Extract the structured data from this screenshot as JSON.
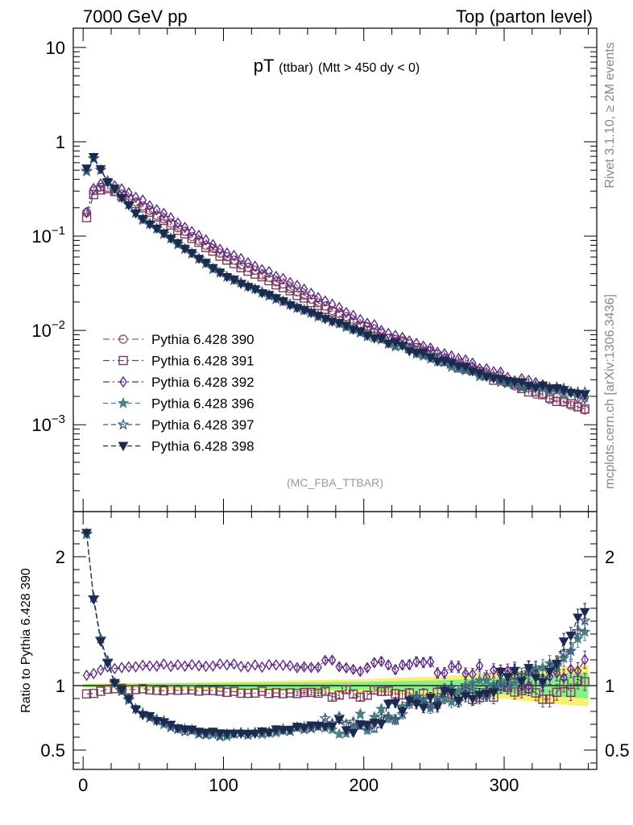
{
  "header": {
    "left": "7000 GeV pp",
    "right": "Top (parton level)"
  },
  "side_labels": {
    "rivet": "Rivet 3.1.10, ≥ 2M events",
    "mcplots": "mcplots.cern.ch [arXiv:1306.3436]"
  },
  "analysis_id": "(MC_FBA_TTBAR)",
  "colors": {
    "p390": "#8c5a82",
    "p391": "#7a3c5a",
    "p392": "#5e2a84",
    "p396": "#4a7f84",
    "p397": "#3c5a78",
    "p398": "#1c2a50",
    "band_inner": "#88f088",
    "band_outer": "#f8f070"
  },
  "chart_data": [
    {
      "type": "line",
      "title_main": "pT",
      "title_sub": "(ttbar)",
      "title_rest": "(Mtt > 450 dy < 0)",
      "xlabel": "",
      "ylabel": "",
      "xlim": [
        -7,
        366
      ],
      "ylim": [
        0.00012,
        16
      ],
      "yscale": "log",
      "y_ticks": [
        {
          "value": 10,
          "label": "10"
        },
        {
          "value": 1,
          "label": "1"
        },
        {
          "value": 0.1,
          "label_base": "10",
          "label_exp": "−1"
        },
        {
          "value": 0.01,
          "label_base": "10",
          "label_exp": "−2"
        },
        {
          "value": 0.001,
          "label_base": "10",
          "label_exp": "−3"
        }
      ],
      "legend_position": "bottom-left",
      "legend": [
        {
          "label": "Pythia 6.428 390",
          "marker": "circle-open",
          "color": "p390",
          "dash": "8,4,2,4"
        },
        {
          "label": "Pythia 6.428 391",
          "marker": "square-open",
          "color": "p391",
          "dash": "8,4,2,4"
        },
        {
          "label": "Pythia 6.428 392",
          "marker": "diamond-open",
          "color": "p392",
          "dash": "8,4,2,4"
        },
        {
          "label": "Pythia 6.428 396",
          "marker": "star",
          "color": "p396",
          "dash": "6,4"
        },
        {
          "label": "Pythia 6.428 397",
          "marker": "star-open",
          "color": "p397",
          "dash": "6,4"
        },
        {
          "label": "Pythia 6.428 398",
          "marker": "triangle-down",
          "color": "p398",
          "dash": "6,4"
        }
      ],
      "series_model": "piecewise log-linear anchors (x in GeV, y in arb. units), read from the plot",
      "series": [
        {
          "key": "p390",
          "anchors": [
            [
              2.5,
              0.18
            ],
            [
              7.5,
              0.3
            ],
            [
              12.5,
              0.33
            ],
            [
              17.5,
              0.33
            ],
            [
              40,
              0.22
            ],
            [
              100,
              0.062
            ],
            [
              150,
              0.027
            ],
            [
              200,
              0.011
            ],
            [
              250,
              0.0055
            ],
            [
              300,
              0.0029
            ],
            [
              360,
              0.0014
            ]
          ]
        },
        {
          "key": "p391",
          "anchors": [
            [
              2.5,
              0.16
            ],
            [
              7.5,
              0.28
            ],
            [
              12.5,
              0.31
            ],
            [
              17.5,
              0.32
            ],
            [
              40,
              0.21
            ],
            [
              100,
              0.058
            ],
            [
              150,
              0.025
            ],
            [
              200,
              0.0105
            ],
            [
              250,
              0.0052
            ],
            [
              300,
              0.0028
            ],
            [
              360,
              0.0014
            ]
          ]
        },
        {
          "key": "p392",
          "anchors": [
            [
              2.5,
              0.18
            ],
            [
              7.5,
              0.32
            ],
            [
              12.5,
              0.36
            ],
            [
              17.5,
              0.37
            ],
            [
              40,
              0.25
            ],
            [
              100,
              0.07
            ],
            [
              150,
              0.031
            ],
            [
              200,
              0.0125
            ],
            [
              250,
              0.0062
            ],
            [
              300,
              0.0033
            ],
            [
              360,
              0.0019
            ]
          ]
        },
        {
          "key": "p396",
          "anchors": [
            [
              2.5,
              0.49
            ],
            [
              7.5,
              0.66
            ],
            [
              12.5,
              0.5
            ],
            [
              17.5,
              0.38
            ],
            [
              40,
              0.16
            ],
            [
              100,
              0.038
            ],
            [
              150,
              0.018
            ],
            [
              200,
              0.0092
            ],
            [
              250,
              0.005
            ],
            [
              300,
              0.0028
            ],
            [
              360,
              0.002
            ]
          ]
        },
        {
          "key": "p397",
          "anchors": [
            [
              2.5,
              0.5
            ],
            [
              7.5,
              0.67
            ],
            [
              12.5,
              0.51
            ],
            [
              17.5,
              0.38
            ],
            [
              40,
              0.16
            ],
            [
              100,
              0.038
            ],
            [
              150,
              0.018
            ],
            [
              200,
              0.0094
            ],
            [
              250,
              0.0051
            ],
            [
              300,
              0.0029
            ],
            [
              360,
              0.0021
            ]
          ]
        },
        {
          "key": "p398",
          "anchors": [
            [
              2.5,
              0.51
            ],
            [
              7.5,
              0.68
            ],
            [
              12.5,
              0.52
            ],
            [
              17.5,
              0.38
            ],
            [
              40,
              0.16
            ],
            [
              100,
              0.038
            ],
            [
              150,
              0.018
            ],
            [
              200,
              0.0093
            ],
            [
              250,
              0.005
            ],
            [
              300,
              0.0029
            ],
            [
              360,
              0.0021
            ]
          ]
        }
      ]
    },
    {
      "type": "line",
      "xlabel": "",
      "ylabel": "Ratio to Pythia 6.428 390",
      "xlim": [
        -7,
        366
      ],
      "ylim": [
        0.35,
        2.35
      ],
      "x_ticks": [
        0,
        100,
        200,
        300
      ],
      "y_ticks": [
        {
          "value": 2,
          "label": "2"
        },
        {
          "value": 1,
          "label": "1"
        },
        {
          "value": 0.5,
          "label": "0.5"
        }
      ],
      "reference_series": "p390",
      "reference_value": 1,
      "band": {
        "x": [
          0,
          100,
          200,
          250,
          300,
          330,
          360
        ],
        "inner_halfwidth": [
          0.01,
          0.02,
          0.03,
          0.04,
          0.06,
          0.08,
          0.1
        ],
        "outer_halfwidth": [
          0.015,
          0.03,
          0.05,
          0.07,
          0.1,
          0.14,
          0.16
        ]
      },
      "series": [
        {
          "key": "p391",
          "anchors": [
            [
              2.5,
              0.93
            ],
            [
              10,
              0.96
            ],
            [
              20,
              0.97
            ],
            [
              100,
              0.955
            ],
            [
              150,
              0.94
            ],
            [
              200,
              0.93
            ],
            [
              230,
              0.9
            ],
            [
              260,
              0.93
            ],
            [
              300,
              0.95
            ],
            [
              330,
              0.92
            ],
            [
              360,
              1.05
            ]
          ],
          "noise": 0.03
        },
        {
          "key": "p392",
          "anchors": [
            [
              2.5,
              1.08
            ],
            [
              15,
              1.13
            ],
            [
              40,
              1.16
            ],
            [
              100,
              1.16
            ],
            [
              150,
              1.15
            ],
            [
              200,
              1.14
            ],
            [
              230,
              1.16
            ],
            [
              260,
              1.13
            ],
            [
              300,
              1.08
            ],
            [
              330,
              1.0
            ],
            [
              360,
              1.2
            ]
          ],
          "noise": 0.035
        },
        {
          "key": "p396",
          "anchors": [
            [
              2.5,
              2.18
            ],
            [
              7.5,
              1.68
            ],
            [
              12.5,
              1.35
            ],
            [
              22.5,
              1.02
            ],
            [
              40,
              0.8
            ],
            [
              60,
              0.7
            ],
            [
              80,
              0.635
            ],
            [
              100,
              0.62
            ],
            [
              130,
              0.635
            ],
            [
              160,
              0.68
            ],
            [
              190,
              0.7
            ],
            [
              210,
              0.74
            ],
            [
              225,
              0.82
            ],
            [
              250,
              0.9
            ],
            [
              280,
              0.97
            ],
            [
              300,
              1.05
            ],
            [
              330,
              1.1
            ],
            [
              360,
              1.45
            ]
          ],
          "noise": 0.045
        },
        {
          "key": "p397",
          "anchors": [
            [
              2.5,
              2.18
            ],
            [
              7.5,
              1.68
            ],
            [
              12.5,
              1.35
            ],
            [
              22.5,
              1.02
            ],
            [
              40,
              0.8
            ],
            [
              60,
              0.7
            ],
            [
              80,
              0.635
            ],
            [
              100,
              0.62
            ],
            [
              130,
              0.635
            ],
            [
              160,
              0.68
            ],
            [
              190,
              0.7
            ],
            [
              210,
              0.74
            ],
            [
              225,
              0.82
            ],
            [
              250,
              0.9
            ],
            [
              280,
              0.97
            ],
            [
              300,
              1.05
            ],
            [
              330,
              1.1
            ],
            [
              360,
              1.5
            ]
          ],
          "noise": 0.05
        },
        {
          "key": "p398",
          "anchors": [
            [
              2.5,
              2.18
            ],
            [
              7.5,
              1.68
            ],
            [
              12.5,
              1.35
            ],
            [
              22.5,
              1.02
            ],
            [
              40,
              0.8
            ],
            [
              60,
              0.7
            ],
            [
              80,
              0.635
            ],
            [
              100,
              0.62
            ],
            [
              130,
              0.635
            ],
            [
              160,
              0.68
            ],
            [
              190,
              0.7
            ],
            [
              210,
              0.74
            ],
            [
              225,
              0.82
            ],
            [
              250,
              0.9
            ],
            [
              280,
              0.97
            ],
            [
              300,
              1.05
            ],
            [
              330,
              1.1
            ],
            [
              360,
              1.62
            ]
          ],
          "noise": 0.05
        }
      ]
    }
  ]
}
